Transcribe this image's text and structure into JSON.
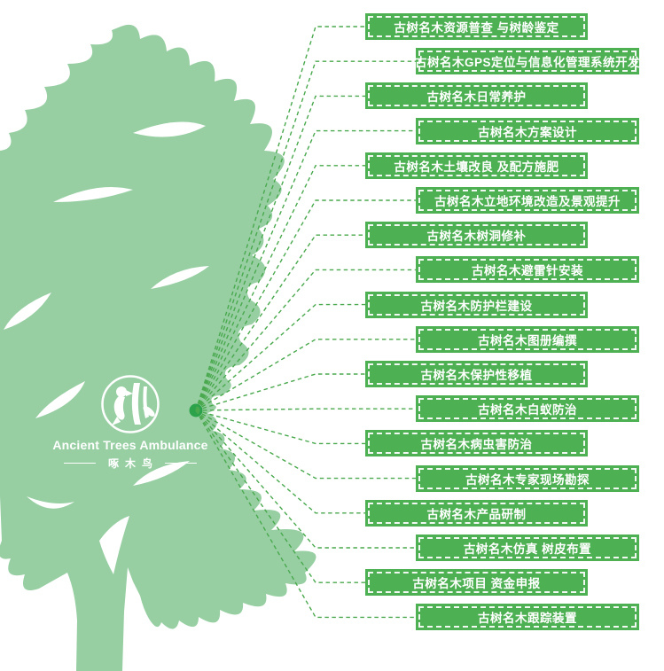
{
  "logo": {
    "title": "Ancient Trees Ambulance",
    "subtitle": "啄木鸟",
    "icon": "woodpecker-logo-icon"
  },
  "colors": {
    "tree_silhouette": "#97cfa3",
    "banner_green": "#4db052",
    "connector_green": "#4aa94e",
    "hub_dot_green": "#2ca34b",
    "label_text": "#ffffff",
    "background": "#ffffff"
  },
  "services": [
    "古树名木资源普查 与树龄鉴定",
    "古树名木GPS定位与信息化管理系统开发",
    "古树名木日常养护",
    "古树名木方案设计",
    "古树名木土壤改良 及配方施肥",
    "古树名木立地环境改造及景观提升",
    "古树名木树洞修补",
    "古树名木避雷针安装",
    "古树名木防护栏建设",
    "古树名木图册编撰",
    "古树名木保护性移植",
    "古树名木白蚁防治",
    "古树名木病虫害防治",
    "古树名木专家现场勘探",
    "古树名木产品研制",
    "古树名木仿真 树皮布置",
    "古树名木项目 资金申报",
    "古树名木跟踪装置"
  ]
}
